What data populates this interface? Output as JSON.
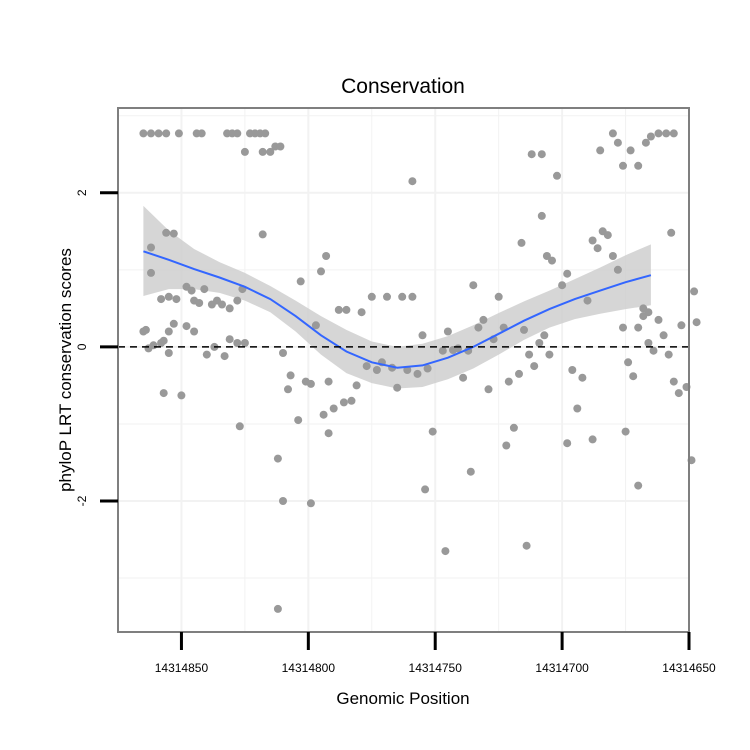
{
  "chart_data": {
    "type": "scatter",
    "title": "Conservation",
    "xlabel": "Genomic Position",
    "ylabel": "phyloP LRT conservation scores",
    "x_reversed": true,
    "xlim": [
      14314875,
      14314650
    ],
    "ylim": [
      -3.7,
      3.1
    ],
    "x_ticks": [
      14314850,
      14314800,
      14314750,
      14314700,
      14314650
    ],
    "x_tick_labels": [
      "14314850",
      "14314800",
      "14314750",
      "14314700",
      "14314650"
    ],
    "y_ticks": [
      -2,
      0,
      2
    ],
    "y_tick_labels": [
      "-2",
      "0",
      "2"
    ],
    "grid": true,
    "reference_line": {
      "y": 0,
      "style": "dashed"
    },
    "colors": {
      "points": "#999999",
      "smooth": "#3366ff",
      "ribbon": "#cccccc",
      "panel_border": "#7f7f7f",
      "grid": "#f2f2f2"
    },
    "smooth": {
      "x": [
        14314865,
        14314855,
        14314845,
        14314835,
        14314825,
        14314815,
        14314805,
        14314795,
        14314785,
        14314775,
        14314765,
        14314755,
        14314745,
        14314735,
        14314725,
        14314715,
        14314705,
        14314695,
        14314685,
        14314675,
        14314665
      ],
      "y": [
        1.24,
        1.13,
        1.01,
        0.9,
        0.78,
        0.62,
        0.4,
        0.15,
        -0.06,
        -0.2,
        -0.27,
        -0.24,
        -0.14,
        0.0,
        0.17,
        0.34,
        0.49,
        0.62,
        0.73,
        0.84,
        0.93
      ],
      "lower": [
        0.66,
        0.75,
        0.75,
        0.7,
        0.6,
        0.45,
        0.2,
        -0.1,
        -0.34,
        -0.47,
        -0.54,
        -0.52,
        -0.42,
        -0.28,
        -0.1,
        0.09,
        0.25,
        0.36,
        0.43,
        0.49,
        0.54
      ],
      "upper": [
        1.83,
        1.51,
        1.27,
        1.1,
        0.96,
        0.79,
        0.6,
        0.4,
        0.22,
        0.07,
        0.0,
        0.04,
        0.14,
        0.28,
        0.44,
        0.59,
        0.73,
        0.88,
        1.03,
        1.19,
        1.33
      ]
    },
    "points": [
      {
        "x": 14314865,
        "y": 2.77
      },
      {
        "x": 14314862,
        "y": 2.77
      },
      {
        "x": 14314859,
        "y": 2.77
      },
      {
        "x": 14314856,
        "y": 2.77
      },
      {
        "x": 14314851,
        "y": 2.77
      },
      {
        "x": 14314844,
        "y": 2.77
      },
      {
        "x": 14314842,
        "y": 2.77
      },
      {
        "x": 14314832,
        "y": 2.77
      },
      {
        "x": 14314830,
        "y": 2.77
      },
      {
        "x": 14314828,
        "y": 2.77
      },
      {
        "x": 14314823,
        "y": 2.77
      },
      {
        "x": 14314821,
        "y": 2.77
      },
      {
        "x": 14314819,
        "y": 2.77
      },
      {
        "x": 14314817,
        "y": 2.77
      },
      {
        "x": 14314825,
        "y": 2.53
      },
      {
        "x": 14314818,
        "y": 2.53
      },
      {
        "x": 14314815,
        "y": 2.53
      },
      {
        "x": 14314813,
        "y": 2.6
      },
      {
        "x": 14314811,
        "y": 2.6
      },
      {
        "x": 14314818,
        "y": 1.46
      },
      {
        "x": 14314856,
        "y": 1.48
      },
      {
        "x": 14314853,
        "y": 1.47
      },
      {
        "x": 14314862,
        "y": 1.29
      },
      {
        "x": 14314862,
        "y": 0.96
      },
      {
        "x": 14314858,
        "y": 0.62
      },
      {
        "x": 14314855,
        "y": 0.65
      },
      {
        "x": 14314852,
        "y": 0.62
      },
      {
        "x": 14314848,
        "y": 0.78
      },
      {
        "x": 14314846,
        "y": 0.73
      },
      {
        "x": 14314845,
        "y": 0.6
      },
      {
        "x": 14314843,
        "y": 0.57
      },
      {
        "x": 14314841,
        "y": 0.75
      },
      {
        "x": 14314838,
        "y": 0.55
      },
      {
        "x": 14314836,
        "y": 0.6
      },
      {
        "x": 14314834,
        "y": 0.55
      },
      {
        "x": 14314831,
        "y": 0.5
      },
      {
        "x": 14314828,
        "y": 0.6
      },
      {
        "x": 14314826,
        "y": 0.75
      },
      {
        "x": 14314864,
        "y": 0.22
      },
      {
        "x": 14314865,
        "y": 0.2
      },
      {
        "x": 14314858,
        "y": 0.05
      },
      {
        "x": 14314861,
        "y": 0.02
      },
      {
        "x": 14314863,
        "y": -0.02
      },
      {
        "x": 14314855,
        "y": 0.2
      },
      {
        "x": 14314853,
        "y": 0.3
      },
      {
        "x": 14314857,
        "y": 0.08
      },
      {
        "x": 14314855,
        "y": -0.08
      },
      {
        "x": 14314848,
        "y": 0.27
      },
      {
        "x": 14314845,
        "y": 0.2
      },
      {
        "x": 14314840,
        "y": -0.1
      },
      {
        "x": 14314837,
        "y": 0.0
      },
      {
        "x": 14314833,
        "y": -0.12
      },
      {
        "x": 14314831,
        "y": 0.1
      },
      {
        "x": 14314828,
        "y": 0.05
      },
      {
        "x": 14314825,
        "y": 0.05
      },
      {
        "x": 14314857,
        "y": -0.6
      },
      {
        "x": 14314850,
        "y": -0.63
      },
      {
        "x": 14314827,
        "y": -1.03
      },
      {
        "x": 14314810,
        "y": -0.08
      },
      {
        "x": 14314808,
        "y": -0.55
      },
      {
        "x": 14314807,
        "y": -0.37
      },
      {
        "x": 14314804,
        "y": -0.95
      },
      {
        "x": 14314803,
        "y": 0.85
      },
      {
        "x": 14314801,
        "y": -0.45
      },
      {
        "x": 14314799,
        "y": -0.48
      },
      {
        "x": 14314797,
        "y": 0.28
      },
      {
        "x": 14314795,
        "y": 0.98
      },
      {
        "x": 14314793,
        "y": 1.18
      },
      {
        "x": 14314792,
        "y": -0.45
      },
      {
        "x": 14314790,
        "y": -0.8
      },
      {
        "x": 14314788,
        "y": 0.48
      },
      {
        "x": 14314786,
        "y": -0.72
      },
      {
        "x": 14314785,
        "y": 0.48
      },
      {
        "x": 14314783,
        "y": -0.7
      },
      {
        "x": 14314781,
        "y": -0.5
      },
      {
        "x": 14314779,
        "y": 0.45
      },
      {
        "x": 14314812,
        "y": -1.45
      },
      {
        "x": 14314810,
        "y": -2.0
      },
      {
        "x": 14314799,
        "y": -2.03
      },
      {
        "x": 14314794,
        "y": -0.88
      },
      {
        "x": 14314792,
        "y": -1.12
      },
      {
        "x": 14314812,
        "y": -3.4
      },
      {
        "x": 14314777,
        "y": -0.25
      },
      {
        "x": 14314775,
        "y": 0.65
      },
      {
        "x": 14314773,
        "y": -0.3
      },
      {
        "x": 14314771,
        "y": -0.2
      },
      {
        "x": 14314769,
        "y": 0.65
      },
      {
        "x": 14314767,
        "y": -0.27
      },
      {
        "x": 14314765,
        "y": -0.53
      },
      {
        "x": 14314763,
        "y": 0.65
      },
      {
        "x": 14314761,
        "y": -0.3
      },
      {
        "x": 14314759,
        "y": 0.65
      },
      {
        "x": 14314757,
        "y": -0.35
      },
      {
        "x": 14314755,
        "y": 0.15
      },
      {
        "x": 14314753,
        "y": -0.28
      },
      {
        "x": 14314751,
        "y": -1.1
      },
      {
        "x": 14314759,
        "y": 2.15
      },
      {
        "x": 14314747,
        "y": -0.05
      },
      {
        "x": 14314745,
        "y": 0.2
      },
      {
        "x": 14314743,
        "y": -0.04
      },
      {
        "x": 14314741,
        "y": -0.02
      },
      {
        "x": 14314739,
        "y": -0.4
      },
      {
        "x": 14314737,
        "y": -0.05
      },
      {
        "x": 14314735,
        "y": 0.8
      },
      {
        "x": 14314733,
        "y": 0.25
      },
      {
        "x": 14314731,
        "y": 0.35
      },
      {
        "x": 14314729,
        "y": -0.55
      },
      {
        "x": 14314727,
        "y": 0.1
      },
      {
        "x": 14314725,
        "y": 0.65
      },
      {
        "x": 14314723,
        "y": 0.25
      },
      {
        "x": 14314721,
        "y": -0.45
      },
      {
        "x": 14314719,
        "y": -1.05
      },
      {
        "x": 14314717,
        "y": -0.35
      },
      {
        "x": 14314754,
        "y": -1.85
      },
      {
        "x": 14314746,
        "y": -2.65
      },
      {
        "x": 14314736,
        "y": -1.62
      },
      {
        "x": 14314722,
        "y": -1.28
      },
      {
        "x": 14314714,
        "y": -2.58
      },
      {
        "x": 14314715,
        "y": 0.22
      },
      {
        "x": 14314713,
        "y": -0.1
      },
      {
        "x": 14314711,
        "y": -0.25
      },
      {
        "x": 14314709,
        "y": 0.05
      },
      {
        "x": 14314707,
        "y": 0.15
      },
      {
        "x": 14314705,
        "y": -0.1
      },
      {
        "x": 14314716,
        "y": 1.35
      },
      {
        "x": 14314712,
        "y": 2.5
      },
      {
        "x": 14314708,
        "y": 2.5
      },
      {
        "x": 14314706,
        "y": 1.18
      },
      {
        "x": 14314704,
        "y": 1.12
      },
      {
        "x": 14314702,
        "y": 2.22
      },
      {
        "x": 14314708,
        "y": 1.7
      },
      {
        "x": 14314700,
        "y": 0.8
      },
      {
        "x": 14314698,
        "y": 0.95
      },
      {
        "x": 14314696,
        "y": -0.3
      },
      {
        "x": 14314694,
        "y": -0.8
      },
      {
        "x": 14314692,
        "y": -0.4
      },
      {
        "x": 14314690,
        "y": 0.6
      },
      {
        "x": 14314688,
        "y": 1.38
      },
      {
        "x": 14314686,
        "y": 1.28
      },
      {
        "x": 14314684,
        "y": 1.5
      },
      {
        "x": 14314682,
        "y": 1.45
      },
      {
        "x": 14314680,
        "y": 1.18
      },
      {
        "x": 14314678,
        "y": 1.0
      },
      {
        "x": 14314676,
        "y": 0.25
      },
      {
        "x": 14314674,
        "y": -0.2
      },
      {
        "x": 14314672,
        "y": -0.38
      },
      {
        "x": 14314670,
        "y": 0.25
      },
      {
        "x": 14314668,
        "y": 0.4
      },
      {
        "x": 14314666,
        "y": 0.05
      },
      {
        "x": 14314664,
        "y": -0.05
      },
      {
        "x": 14314698,
        "y": -1.25
      },
      {
        "x": 14314688,
        "y": -1.2
      },
      {
        "x": 14314675,
        "y": -1.1
      },
      {
        "x": 14314670,
        "y": -1.8
      },
      {
        "x": 14314685,
        "y": 2.55
      },
      {
        "x": 14314680,
        "y": 2.77
      },
      {
        "x": 14314678,
        "y": 2.65
      },
      {
        "x": 14314676,
        "y": 2.35
      },
      {
        "x": 14314673,
        "y": 2.55
      },
      {
        "x": 14314670,
        "y": 2.35
      },
      {
        "x": 14314667,
        "y": 2.65
      },
      {
        "x": 14314665,
        "y": 2.73
      },
      {
        "x": 14314662,
        "y": 2.77
      },
      {
        "x": 14314659,
        "y": 2.77
      },
      {
        "x": 14314656,
        "y": 2.77
      },
      {
        "x": 14314657,
        "y": 1.48
      },
      {
        "x": 14314668,
        "y": 0.5
      },
      {
        "x": 14314666,
        "y": 0.45
      },
      {
        "x": 14314662,
        "y": 0.35
      },
      {
        "x": 14314660,
        "y": 0.15
      },
      {
        "x": 14314658,
        "y": -0.1
      },
      {
        "x": 14314656,
        "y": -0.45
      },
      {
        "x": 14314653,
        "y": 0.28
      },
      {
        "x": 14314651,
        "y": -0.52
      },
      {
        "x": 14314648,
        "y": 0.72
      },
      {
        "x": 14314647,
        "y": 0.32
      },
      {
        "x": 14314654,
        "y": -0.6
      },
      {
        "x": 14314649,
        "y": -1.47
      }
    ]
  }
}
